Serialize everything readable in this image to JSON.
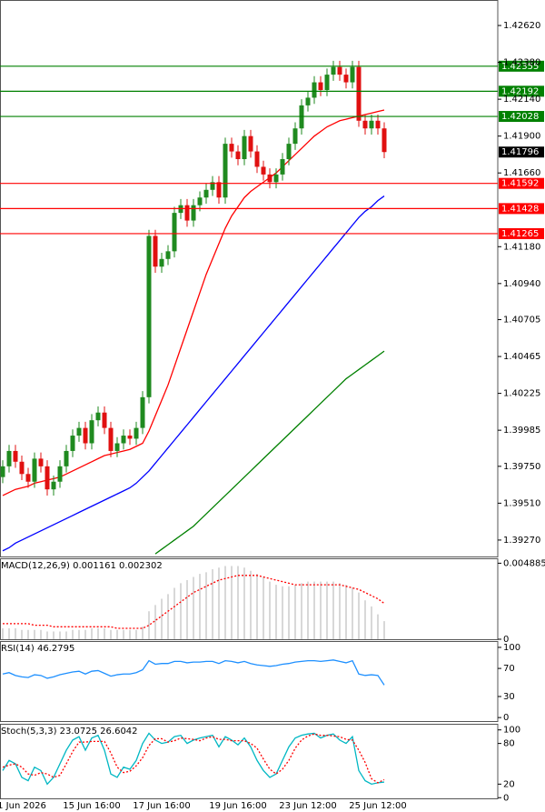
{
  "chart_data": [
    {
      "type": "candlestick",
      "categories": [
        null,
        null,
        null,
        "1 Jun 2026",
        null,
        null,
        null,
        null,
        null,
        null,
        null,
        null,
        null,
        null,
        "15 Jun 16:00",
        null,
        null,
        null,
        null,
        null,
        null,
        null,
        null,
        null,
        null,
        "17 Jun 16:00",
        null,
        null,
        null,
        null,
        null,
        null,
        null,
        null,
        null,
        null,
        null,
        "19 Jun 16:00",
        null,
        null,
        null,
        null,
        null,
        null,
        null,
        null,
        null,
        null,
        "23 Jun 12:00",
        null,
        null,
        null,
        null,
        null,
        null,
        null,
        null,
        null,
        null,
        "25 Jun 12:00",
        null
      ],
      "candles": {
        "open": [
          1.3968,
          1.3975,
          1.3985,
          1.3978,
          1.397,
          1.3965,
          1.398,
          1.3975,
          1.396,
          1.3965,
          1.3975,
          1.3985,
          1.3995,
          1.4,
          1.399,
          1.4005,
          1.401,
          1.4,
          1.3985,
          1.399,
          1.3995,
          1.3993,
          1.4,
          1.402,
          1.4125,
          1.4105,
          1.411,
          1.4115,
          1.414,
          1.4145,
          1.4135,
          1.4145,
          1.415,
          1.4155,
          1.416,
          1.415,
          1.4185,
          1.418,
          1.4175,
          1.419,
          1.418,
          1.417,
          1.4165,
          1.416,
          1.4165,
          1.4175,
          1.4185,
          1.4195,
          1.421,
          1.4215,
          1.4225,
          1.422,
          1.423,
          1.4235,
          1.423,
          1.4225,
          1.4235,
          1.42,
          1.4195,
          1.42,
          1.4195
        ],
        "high": [
          1.3979,
          1.3989,
          1.3989,
          1.3982,
          1.3974,
          1.3984,
          1.3984,
          1.3979,
          1.3969,
          1.3979,
          1.3989,
          1.3999,
          1.4004,
          1.4004,
          1.4009,
          1.4014,
          1.4014,
          1.4004,
          1.3994,
          1.3999,
          1.3999,
          1.4004,
          1.4024,
          1.4129,
          1.4129,
          1.4114,
          1.4119,
          1.4144,
          1.4149,
          1.4149,
          1.4149,
          1.4154,
          1.4159,
          1.4164,
          1.4164,
          1.4189,
          1.4189,
          1.4184,
          1.4194,
          1.4194,
          1.4184,
          1.4174,
          1.4169,
          1.4169,
          1.4179,
          1.4189,
          1.4199,
          1.4214,
          1.4219,
          1.4229,
          1.4229,
          1.4234,
          1.4239,
          1.4239,
          1.4234,
          1.4239,
          1.4239,
          1.4204,
          1.4204,
          1.4204,
          1.4199
        ],
        "low": [
          1.3964,
          1.3971,
          1.3974,
          1.3966,
          1.3961,
          1.3961,
          1.3971,
          1.3956,
          1.3956,
          1.3961,
          1.3971,
          1.3981,
          1.3991,
          1.3986,
          1.3986,
          1.4001,
          1.3996,
          1.3981,
          1.3981,
          1.3986,
          1.3989,
          1.3989,
          1.3996,
          1.4016,
          1.4101,
          1.4101,
          1.4106,
          1.4111,
          1.4136,
          1.4131,
          1.4131,
          1.4141,
          1.4146,
          1.4151,
          1.4146,
          1.4146,
          1.4176,
          1.4171,
          1.4171,
          1.4176,
          1.4166,
          1.4161,
          1.4156,
          1.4156,
          1.4161,
          1.4171,
          1.4181,
          1.4191,
          1.4206,
          1.4211,
          1.4216,
          1.4216,
          1.4226,
          1.4226,
          1.4221,
          1.4221,
          1.4196,
          1.4191,
          1.4191,
          1.4191,
          1.41756
        ],
        "close": [
          1.3975,
          1.3985,
          1.3978,
          1.397,
          1.3965,
          1.398,
          1.3975,
          1.396,
          1.3965,
          1.3975,
          1.3985,
          1.3995,
          1.4,
          1.399,
          1.4005,
          1.401,
          1.4,
          1.3985,
          1.399,
          1.3995,
          1.3993,
          1.4,
          1.402,
          1.4125,
          1.4105,
          1.411,
          1.4115,
          1.414,
          1.4145,
          1.4135,
          1.4145,
          1.415,
          1.4155,
          1.416,
          1.415,
          1.4185,
          1.418,
          1.4175,
          1.419,
          1.418,
          1.417,
          1.4165,
          1.416,
          1.4165,
          1.4175,
          1.4185,
          1.4195,
          1.421,
          1.4215,
          1.4225,
          1.422,
          1.423,
          1.4235,
          1.423,
          1.4225,
          1.4235,
          1.42,
          1.4195,
          1.42,
          1.4195,
          1.41796
        ]
      },
      "up_color": "#1f8a1f",
      "down_color": "#e01010",
      "series": [
        {
          "color": "#ff0000",
          "values": [
            1.3956,
            1.3958,
            1.396,
            1.3961,
            1.3962,
            1.3964,
            1.3965,
            1.3966,
            1.3967,
            1.3968,
            1.397,
            1.3972,
            1.3974,
            1.3976,
            1.3978,
            1.398,
            1.3982,
            1.3983,
            1.3984,
            1.3985,
            1.3986,
            1.3988,
            1.399,
            1.3998,
            1.4008,
            1.4018,
            1.4028,
            1.404,
            1.4052,
            1.4064,
            1.4076,
            1.4088,
            1.41,
            1.411,
            1.412,
            1.413,
            1.4138,
            1.4144,
            1.415,
            1.4154,
            1.4157,
            1.416,
            1.4163,
            1.4166,
            1.417,
            1.4174,
            1.4178,
            1.4182,
            1.4186,
            1.419,
            1.4193,
            1.4196,
            1.4198,
            1.42,
            1.4201,
            1.4202,
            1.4203,
            1.4204,
            1.4205,
            1.4206,
            1.4207
          ]
        },
        {
          "color": "#0000ff",
          "values": [
            1.392,
            1.3922,
            1.3925,
            1.3927,
            1.3929,
            1.3931,
            1.3933,
            1.3935,
            1.3937,
            1.3939,
            1.3941,
            1.3943,
            1.3945,
            1.3947,
            1.3949,
            1.3951,
            1.3953,
            1.3955,
            1.3957,
            1.3959,
            1.3961,
            1.3964,
            1.3968,
            1.3972,
            1.3977,
            1.3982,
            1.3987,
            1.3992,
            1.3997,
            1.4002,
            1.4007,
            1.4012,
            1.4017,
            1.4022,
            1.4027,
            1.4032,
            1.4037,
            1.4042,
            1.4047,
            1.4052,
            1.4057,
            1.4062,
            1.4067,
            1.4072,
            1.4077,
            1.4082,
            1.4087,
            1.4092,
            1.4097,
            1.4102,
            1.4107,
            1.4112,
            1.4117,
            1.4122,
            1.4127,
            1.4132,
            1.4137,
            1.4141,
            1.4144,
            1.4148,
            1.4151
          ]
        },
        {
          "color": "#008000",
          "values": [
            null,
            null,
            null,
            null,
            null,
            null,
            null,
            null,
            null,
            null,
            null,
            null,
            null,
            null,
            null,
            null,
            null,
            null,
            null,
            null,
            null,
            null,
            null,
            null,
            1.3918,
            1.3921,
            1.3924,
            1.3927,
            1.393,
            1.3933,
            1.3936,
            1.394,
            1.3944,
            1.3948,
            1.3952,
            1.3956,
            1.396,
            1.3964,
            1.3968,
            1.3972,
            1.3976,
            1.398,
            1.3984,
            1.3988,
            1.3992,
            1.3996,
            1.4,
            1.4004,
            1.4008,
            1.4012,
            1.4016,
            1.402,
            1.4024,
            1.4028,
            1.4032,
            1.4035,
            1.4038,
            1.4041,
            1.4044,
            1.4047,
            1.405
          ]
        }
      ],
      "levels": [
        {
          "value": 1.42355,
          "color": "#008000"
        },
        {
          "value": 1.42192,
          "color": "#008000"
        },
        {
          "value": 1.42028,
          "color": "#008000"
        },
        {
          "value": 1.41592,
          "color": "#ff0000"
        },
        {
          "value": 1.41428,
          "color": "#ff0000"
        },
        {
          "value": 1.41265,
          "color": "#ff0000"
        }
      ],
      "ylim": [
        1.39163,
        1.42786
      ],
      "yticks": [
        {
          "value": 1.4262,
          "label": "1.42620"
        },
        {
          "value": 1.4238,
          "label": "1.42380"
        },
        {
          "value": 1.4214,
          "label": "1.42140"
        },
        {
          "value": 1.419,
          "label": "1.41900"
        },
        {
          "value": 1.4166,
          "label": "1.41660"
        },
        {
          "value": 1.4118,
          "label": "1.41180"
        },
        {
          "value": 1.4094,
          "label": "1.40940"
        },
        1.40705,
        1.40465,
        1.40225,
        1.39985,
        {
          "value": 1.3975,
          "label": "1.39750"
        },
        {
          "value": 1.3951,
          "label": "1.39510"
        },
        {
          "value": 1.3927,
          "label": "1.39270"
        }
      ]
    },
    {
      "type": "macd",
      "label": "MACD(12,26,9) 0.001161 0.002302",
      "histogram": [
        0.0007,
        0.0007,
        0.0007,
        0.0006,
        0.0006,
        0.0006,
        0.0006,
        0.0005,
        0.0005,
        0.0005,
        0.0005,
        0.0006,
        0.0006,
        0.0006,
        0.0007,
        0.0007,
        0.0007,
        0.0006,
        0.0006,
        0.0006,
        0.0006,
        0.0006,
        0.0008,
        0.0018,
        0.0022,
        0.0026,
        0.0029,
        0.0033,
        0.0036,
        0.0038,
        0.004,
        0.0042,
        0.0043,
        0.0045,
        0.0046,
        0.0047,
        0.0047,
        0.0047,
        0.0046,
        0.0044,
        0.0042,
        0.004,
        0.0037,
        0.0035,
        0.0034,
        0.0034,
        0.0035,
        0.0036,
        0.0037,
        0.0037,
        0.0037,
        0.0037,
        0.0037,
        0.0036,
        0.0035,
        0.0033,
        0.003,
        0.0025,
        0.0021,
        0.0016,
        0.001161
      ],
      "signal": [
        0.001,
        0.001,
        0.001,
        0.001,
        0.001,
        0.0009,
        0.0009,
        0.0009,
        0.0008,
        0.0008,
        0.0008,
        0.0008,
        0.0008,
        0.0008,
        0.0008,
        0.0008,
        0.0008,
        0.0008,
        0.0007,
        0.0007,
        0.0007,
        0.0007,
        0.0007,
        0.0009,
        0.0012,
        0.0015,
        0.0018,
        0.0021,
        0.0024,
        0.0027,
        0.003,
        0.0032,
        0.0034,
        0.0036,
        0.0038,
        0.0039,
        0.004,
        0.0041,
        0.0041,
        0.0041,
        0.0041,
        0.004,
        0.0039,
        0.0038,
        0.0037,
        0.0036,
        0.0035,
        0.0035,
        0.0035,
        0.0035,
        0.0035,
        0.0035,
        0.0035,
        0.0035,
        0.0034,
        0.0033,
        0.0032,
        0.003,
        0.0028,
        0.0026,
        0.002302
      ],
      "histogram_color": "#b0b0b0",
      "signal_color": "#ff0000",
      "ylim": [
        0,
        0.0052
      ],
      "yticks": [
        0.004885,
        0
      ]
    },
    {
      "type": "line",
      "label": "RSI(14) 46.2795",
      "series": [
        {
          "color": "#1e90ff",
          "values": [
            62,
            64,
            60,
            58,
            57,
            61,
            60,
            56,
            58,
            61,
            63,
            65,
            66,
            62,
            66,
            67,
            63,
            59,
            61,
            62,
            62,
            64,
            68,
            81,
            76,
            77,
            77,
            80,
            80,
            78,
            79,
            79,
            80,
            80,
            77,
            81,
            80,
            78,
            80,
            77,
            75,
            74,
            73,
            74,
            76,
            77,
            79,
            80,
            81,
            81,
            80,
            81,
            82,
            80,
            78,
            81,
            62,
            60,
            61,
            60,
            46.2795
          ]
        }
      ],
      "ylim": [
        -5,
        109
      ],
      "yticks": [
        100,
        70,
        30,
        0
      ]
    },
    {
      "type": "line",
      "label": "Stoch(5,3,3) 23.0725 26.6042",
      "series": [
        {
          "color": "#00b7c3",
          "values": [
            40,
            55,
            50,
            30,
            25,
            45,
            40,
            20,
            30,
            50,
            70,
            85,
            90,
            70,
            88,
            92,
            70,
            35,
            30,
            45,
            42,
            55,
            80,
            95,
            85,
            80,
            82,
            90,
            92,
            80,
            85,
            88,
            90,
            92,
            75,
            90,
            85,
            78,
            88,
            75,
            55,
            40,
            30,
            35,
            55,
            75,
            88,
            92,
            94,
            95,
            88,
            92,
            94,
            85,
            80,
            90,
            40,
            25,
            20,
            22,
            23.0725
          ]
        },
        {
          "color": "#ff0000",
          "dashed": true,
          "values": [
            45,
            48,
            50,
            45,
            35,
            33,
            37,
            35,
            30,
            33,
            50,
            68,
            82,
            82,
            83,
            83,
            83,
            66,
            45,
            37,
            39,
            47,
            59,
            77,
            87,
            87,
            82,
            84,
            88,
            87,
            86,
            84,
            88,
            90,
            86,
            86,
            84,
            84,
            84,
            80,
            73,
            57,
            42,
            35,
            42,
            55,
            73,
            85,
            91,
            94,
            92,
            92,
            91,
            90,
            86,
            85,
            70,
            52,
            28,
            22,
            26.6042
          ]
        }
      ],
      "ylim": [
        -1,
        109
      ],
      "yticks": [
        100,
        80,
        20,
        0
      ]
    }
  ]
}
